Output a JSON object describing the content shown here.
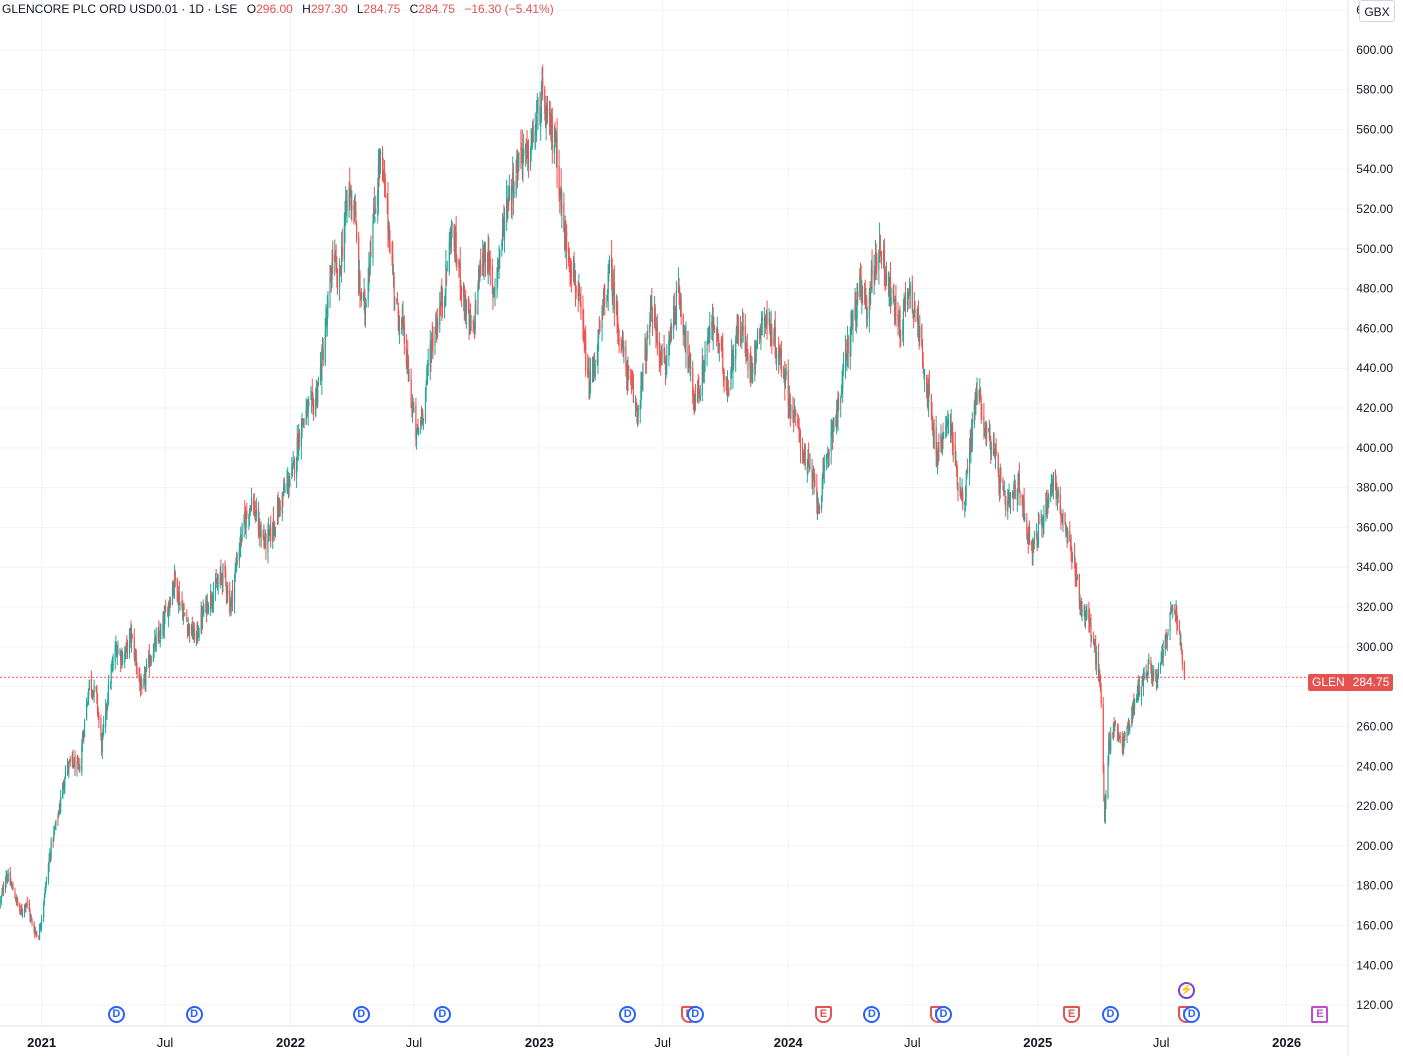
{
  "header": {
    "symbol": "GLENCORE PLC ORD USD0.01 · 1D · LSE",
    "o_label": "O",
    "o_value": "296.00",
    "h_label": "H",
    "h_value": "297.30",
    "l_label": "L",
    "l_value": "284.75",
    "c_label": "C",
    "c_value": "284.75",
    "change": "−16.30 (−5.41%)"
  },
  "currency": "GBX",
  "last_price_tag": {
    "ticker": "GLEN",
    "price": "284.75"
  },
  "colors": {
    "up": "#26a69a",
    "down": "#ef5350",
    "last_line": "#e5524f",
    "dividend": "#2962ff",
    "earnings": "#e5524f",
    "future_earnings": "#c04bd1"
  },
  "events": [
    {
      "type": "dividend",
      "label": "D",
      "date": "2021-04-20"
    },
    {
      "type": "dividend",
      "label": "D",
      "date": "2021-08-12"
    },
    {
      "type": "dividend",
      "label": "D",
      "date": "2022-04-14"
    },
    {
      "type": "dividend",
      "label": "D",
      "date": "2022-08-11"
    },
    {
      "type": "dividend",
      "label": "D",
      "date": "2023-05-10"
    },
    {
      "type": "earnings",
      "label": "E",
      "date": "2023-08-08"
    },
    {
      "type": "dividend",
      "label": "D",
      "date": "2023-08-17"
    },
    {
      "type": "earnings",
      "label": "E",
      "date": "2024-02-21"
    },
    {
      "type": "dividend",
      "label": "D",
      "date": "2024-05-02"
    },
    {
      "type": "earnings",
      "label": "E",
      "date": "2024-08-07"
    },
    {
      "type": "dividend",
      "label": "D",
      "date": "2024-08-15"
    },
    {
      "type": "earnings",
      "label": "E",
      "date": "2025-02-19"
    },
    {
      "type": "dividend",
      "label": "D",
      "date": "2025-04-17"
    },
    {
      "type": "earnings",
      "label": "E",
      "date": "2025-08-06"
    },
    {
      "type": "dividend",
      "label": "D",
      "date": "2025-08-14"
    },
    {
      "type": "earnings-future",
      "label": "E",
      "date": "2026-02-18"
    },
    {
      "type": "spark",
      "label": "⚡",
      "date": "2025-08-06"
    }
  ],
  "chart_data": {
    "type": "candlestick",
    "interval": "1D",
    "x_tick_labels": [
      "2021",
      "Jul",
      "2022",
      "Jul",
      "2023",
      "Jul",
      "2024",
      "Jul",
      "2025",
      "Jul",
      "2026"
    ],
    "x_tick_dates": [
      "2021-01-01",
      "2021-07-01",
      "2022-01-01",
      "2022-07-01",
      "2023-01-01",
      "2023-07-01",
      "2024-01-01",
      "2024-07-01",
      "2025-01-01",
      "2025-07-01",
      "2026-01-01"
    ],
    "x_range": [
      "2020-11-01",
      "2026-04-01"
    ],
    "y_range": [
      110,
      625
    ],
    "y_tick_labels": [
      "120.00",
      "140.00",
      "160.00",
      "180.00",
      "200.00",
      "220.00",
      "240.00",
      "260.00",
      "280.00",
      "300.00",
      "320.00",
      "340.00",
      "360.00",
      "380.00",
      "400.00",
      "420.00",
      "440.00",
      "460.00",
      "480.00",
      "500.00",
      "520.00",
      "540.00",
      "560.00",
      "580.00",
      "600.00",
      "620.00"
    ],
    "last_close": 284.75,
    "grid": true,
    "close_path": [
      [
        "2020-11-02",
        172
      ],
      [
        "2020-11-10",
        186
      ],
      [
        "2020-11-20",
        178
      ],
      [
        "2020-12-01",
        166
      ],
      [
        "2020-12-10",
        172
      ],
      [
        "2020-12-20",
        158
      ],
      [
        "2020-12-28",
        155
      ],
      [
        "2021-01-05",
        175
      ],
      [
        "2021-01-15",
        200
      ],
      [
        "2021-01-25",
        215
      ],
      [
        "2021-02-05",
        238
      ],
      [
        "2021-02-15",
        242
      ],
      [
        "2021-02-25",
        238
      ],
      [
        "2021-03-05",
        262
      ],
      [
        "2021-03-12",
        282
      ],
      [
        "2021-03-22",
        276
      ],
      [
        "2021-03-30",
        250
      ],
      [
        "2021-04-08",
        276
      ],
      [
        "2021-04-20",
        300
      ],
      [
        "2021-05-01",
        294
      ],
      [
        "2021-05-12",
        306
      ],
      [
        "2021-05-20",
        292
      ],
      [
        "2021-05-28",
        276
      ],
      [
        "2021-06-05",
        290
      ],
      [
        "2021-06-15",
        300
      ],
      [
        "2021-06-25",
        306
      ],
      [
        "2021-07-05",
        320
      ],
      [
        "2021-07-15",
        334
      ],
      [
        "2021-07-25",
        320
      ],
      [
        "2021-08-05",
        310
      ],
      [
        "2021-08-15",
        304
      ],
      [
        "2021-08-25",
        316
      ],
      [
        "2021-09-05",
        325
      ],
      [
        "2021-09-15",
        330
      ],
      [
        "2021-09-25",
        338
      ],
      [
        "2021-10-05",
        320
      ],
      [
        "2021-10-15",
        345
      ],
      [
        "2021-10-25",
        362
      ],
      [
        "2021-11-05",
        374
      ],
      [
        "2021-11-15",
        360
      ],
      [
        "2021-11-25",
        352
      ],
      [
        "2021-12-05",
        358
      ],
      [
        "2021-12-15",
        370
      ],
      [
        "2021-12-25",
        380
      ],
      [
        "2022-01-05",
        388
      ],
      [
        "2022-01-15",
        410
      ],
      [
        "2022-01-25",
        418
      ],
      [
        "2022-02-05",
        422
      ],
      [
        "2022-02-15",
        440
      ],
      [
        "2022-02-25",
        470
      ],
      [
        "2022-03-05",
        500
      ],
      [
        "2022-03-12",
        478
      ],
      [
        "2022-03-20",
        510
      ],
      [
        "2022-03-28",
        530
      ],
      [
        "2022-04-05",
        520
      ],
      [
        "2022-04-12",
        480
      ],
      [
        "2022-04-20",
        470
      ],
      [
        "2022-04-28",
        500
      ],
      [
        "2022-05-05",
        520
      ],
      [
        "2022-05-12",
        545
      ],
      [
        "2022-05-20",
        528
      ],
      [
        "2022-05-28",
        500
      ],
      [
        "2022-06-05",
        470
      ],
      [
        "2022-06-15",
        460
      ],
      [
        "2022-06-25",
        430
      ],
      [
        "2022-07-05",
        405
      ],
      [
        "2022-07-15",
        420
      ],
      [
        "2022-07-25",
        450
      ],
      [
        "2022-08-05",
        465
      ],
      [
        "2022-08-15",
        480
      ],
      [
        "2022-08-25",
        510
      ],
      [
        "2022-09-05",
        490
      ],
      [
        "2022-09-15",
        470
      ],
      [
        "2022-09-25",
        455
      ],
      [
        "2022-10-05",
        488
      ],
      [
        "2022-10-15",
        500
      ],
      [
        "2022-10-25",
        478
      ],
      [
        "2022-11-05",
        500
      ],
      [
        "2022-11-15",
        525
      ],
      [
        "2022-11-25",
        535
      ],
      [
        "2022-12-05",
        550
      ],
      [
        "2022-12-15",
        545
      ],
      [
        "2022-12-25",
        560
      ],
      [
        "2023-01-05",
        575
      ],
      [
        "2023-01-15",
        560
      ],
      [
        "2023-01-25",
        555
      ],
      [
        "2023-02-05",
        510
      ],
      [
        "2023-02-15",
        495
      ],
      [
        "2023-02-25",
        480
      ],
      [
        "2023-03-05",
        460
      ],
      [
        "2023-03-15",
        430
      ],
      [
        "2023-03-25",
        445
      ],
      [
        "2023-04-05",
        470
      ],
      [
        "2023-04-15",
        490
      ],
      [
        "2023-04-25",
        465
      ],
      [
        "2023-05-05",
        445
      ],
      [
        "2023-05-15",
        430
      ],
      [
        "2023-05-25",
        418
      ],
      [
        "2023-06-05",
        445
      ],
      [
        "2023-06-15",
        470
      ],
      [
        "2023-06-25",
        450
      ],
      [
        "2023-07-05",
        440
      ],
      [
        "2023-07-15",
        465
      ],
      [
        "2023-07-25",
        478
      ],
      [
        "2023-08-05",
        450
      ],
      [
        "2023-08-15",
        425
      ],
      [
        "2023-08-25",
        430
      ],
      [
        "2023-09-05",
        455
      ],
      [
        "2023-09-15",
        462
      ],
      [
        "2023-09-25",
        445
      ],
      [
        "2023-10-05",
        430
      ],
      [
        "2023-10-15",
        455
      ],
      [
        "2023-10-25",
        460
      ],
      [
        "2023-11-05",
        440
      ],
      [
        "2023-11-15",
        450
      ],
      [
        "2023-11-25",
        468
      ],
      [
        "2023-12-05",
        460
      ],
      [
        "2023-12-15",
        450
      ],
      [
        "2023-12-25",
        440
      ],
      [
        "2024-01-05",
        420
      ],
      [
        "2024-01-15",
        410
      ],
      [
        "2024-01-25",
        395
      ],
      [
        "2024-02-05",
        385
      ],
      [
        "2024-02-15",
        372
      ],
      [
        "2024-02-25",
        390
      ],
      [
        "2024-03-05",
        410
      ],
      [
        "2024-03-15",
        420
      ],
      [
        "2024-03-25",
        445
      ],
      [
        "2024-04-05",
        465
      ],
      [
        "2024-04-15",
        480
      ],
      [
        "2024-04-25",
        470
      ],
      [
        "2024-05-05",
        490
      ],
      [
        "2024-05-15",
        502
      ],
      [
        "2024-05-25",
        485
      ],
      [
        "2024-06-05",
        470
      ],
      [
        "2024-06-15",
        460
      ],
      [
        "2024-06-25",
        482
      ],
      [
        "2024-07-05",
        470
      ],
      [
        "2024-07-15",
        450
      ],
      [
        "2024-07-25",
        425
      ],
      [
        "2024-08-05",
        395
      ],
      [
        "2024-08-15",
        405
      ],
      [
        "2024-08-25",
        415
      ],
      [
        "2024-09-05",
        385
      ],
      [
        "2024-09-15",
        372
      ],
      [
        "2024-09-25",
        405
      ],
      [
        "2024-10-05",
        432
      ],
      [
        "2024-10-15",
        410
      ],
      [
        "2024-10-25",
        402
      ],
      [
        "2024-11-05",
        385
      ],
      [
        "2024-11-15",
        370
      ],
      [
        "2024-11-25",
        375
      ],
      [
        "2024-12-05",
        382
      ],
      [
        "2024-12-15",
        360
      ],
      [
        "2024-12-25",
        350
      ],
      [
        "2025-01-05",
        360
      ],
      [
        "2025-01-15",
        375
      ],
      [
        "2025-01-25",
        385
      ],
      [
        "2025-02-05",
        365
      ],
      [
        "2025-02-15",
        352
      ],
      [
        "2025-02-25",
        340
      ],
      [
        "2025-03-05",
        320
      ],
      [
        "2025-03-15",
        315
      ],
      [
        "2025-03-25",
        300
      ],
      [
        "2025-04-03",
        280
      ],
      [
        "2025-04-09",
        215
      ],
      [
        "2025-04-15",
        250
      ],
      [
        "2025-04-25",
        262
      ],
      [
        "2025-05-05",
        250
      ],
      [
        "2025-05-15",
        262
      ],
      [
        "2025-05-25",
        275
      ],
      [
        "2025-06-05",
        285
      ],
      [
        "2025-06-15",
        290
      ],
      [
        "2025-06-25",
        282
      ],
      [
        "2025-07-05",
        300
      ],
      [
        "2025-07-15",
        315
      ],
      [
        "2025-07-20",
        322
      ],
      [
        "2025-07-25",
        310
      ],
      [
        "2025-07-30",
        300
      ],
      [
        "2025-08-04",
        284.75
      ]
    ]
  }
}
